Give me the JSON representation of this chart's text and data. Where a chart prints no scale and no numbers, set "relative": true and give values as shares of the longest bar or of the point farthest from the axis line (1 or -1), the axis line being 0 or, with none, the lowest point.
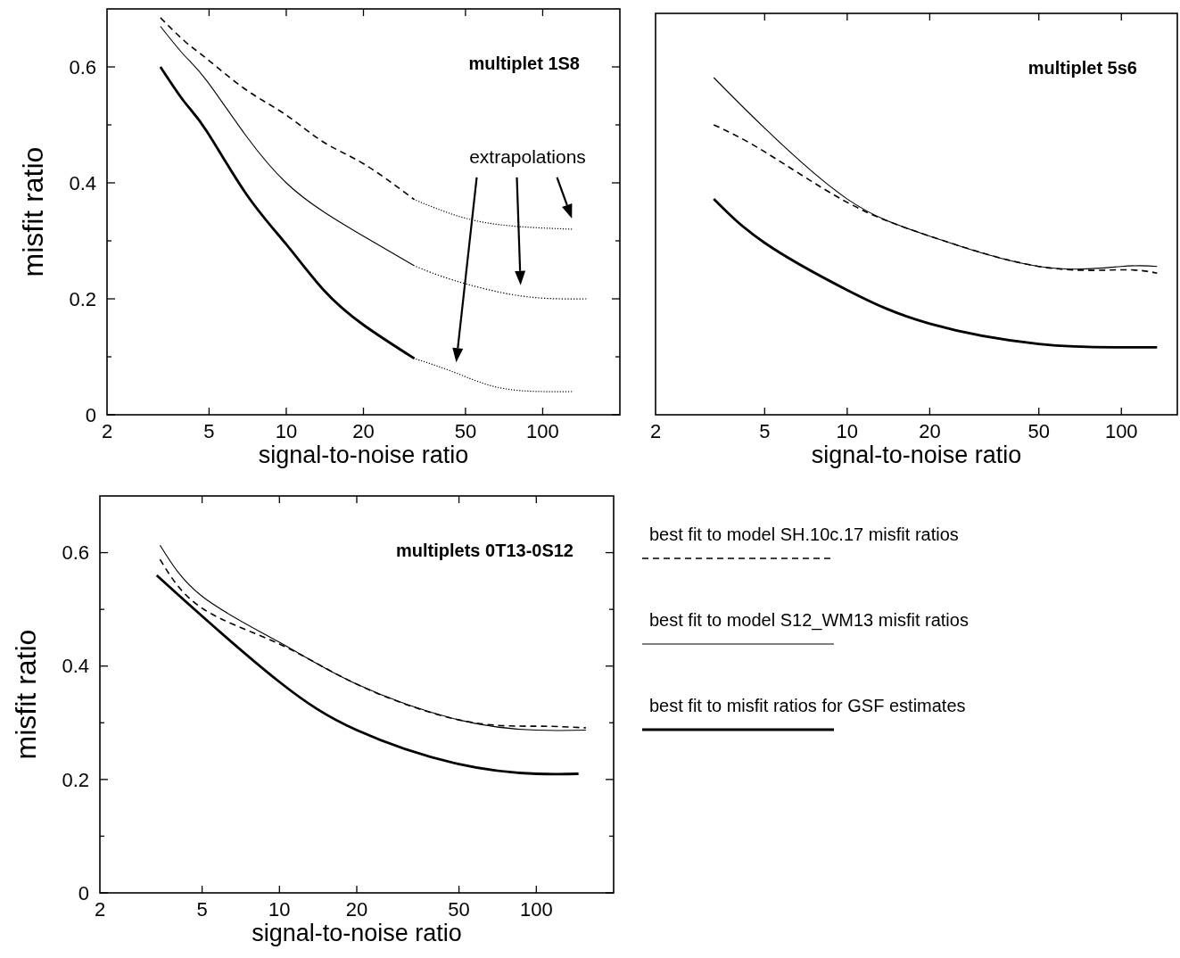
{
  "chart_data": [
    {
      "type": "line",
      "title": "multiplet 1S8",
      "xlabel": "signal-to-noise ratio",
      "ylabel": "misfit ratio",
      "log": "x",
      "xlim": [
        2,
        200
      ],
      "xticks": [
        2,
        5,
        10,
        20,
        50,
        100
      ],
      "ylim": [
        0,
        0.7
      ],
      "yticks": [
        0,
        {
          "value": 0.1,
          "label": null
        },
        0.2,
        {
          "value": 0.3,
          "label": null
        },
        0.4,
        {
          "value": 0.5,
          "label": null
        },
        0.6
      ],
      "annotations": [
        "extrapolations"
      ],
      "legend": false,
      "series": [
        {
          "color": "#000000",
          "line_style": "dashed",
          "x": [
            3.23,
            4,
            4.9,
            7,
            10,
            14,
            20,
            31.6
          ],
          "values": [
            0.685,
            0.645,
            0.614,
            0.56,
            0.517,
            0.47,
            0.433,
            0.371
          ]
        },
        {
          "color": "#000000",
          "line_style": "solid",
          "x": [
            3.23,
            4,
            4.9,
            7,
            10,
            14,
            20,
            31.6
          ],
          "values": [
            0.67,
            0.62,
            0.576,
            0.48,
            0.4,
            0.35,
            0.308,
            0.257
          ]
        },
        {
          "color": "#000000",
          "line_style": "solid",
          "x": [
            3.23,
            4,
            4.9,
            7,
            10,
            14,
            20,
            31.6
          ],
          "values": [
            0.6,
            0.54,
            0.489,
            0.38,
            0.294,
            0.215,
            0.155,
            0.097
          ]
        },
        {
          "color": "#000000",
          "line_style": "dotted",
          "x": [
            31.6,
            50,
            79,
            130
          ],
          "values": [
            0.371,
            0.339,
            0.325,
            0.32
          ]
        },
        {
          "color": "#000000",
          "line_style": "dotted",
          "x": [
            31.6,
            45,
            82,
            148
          ],
          "values": [
            0.257,
            0.232,
            0.205,
            0.2
          ]
        },
        {
          "color": "#000000",
          "line_style": "dotted",
          "x": [
            31.6,
            46,
            71,
            130
          ],
          "values": [
            0.097,
            0.072,
            0.045,
            0.04
          ]
        }
      ]
    },
    {
      "type": "line",
      "title": "multiplet 5s6",
      "xlabel": "signal-to-noise ratio",
      "log": "x",
      "xlim": [
        2,
        160
      ],
      "xticks": [
        2,
        5,
        10,
        20,
        50,
        100
      ],
      "relative": true,
      "legend": false,
      "series": [
        {
          "color": "#000000",
          "line_style": "dashed",
          "x": [
            3.26,
            5,
            10,
            20,
            50,
            100,
            135
          ],
          "values": [
            0.86,
            0.78,
            0.63,
            0.53,
            0.44,
            0.43,
            0.42
          ]
        },
        {
          "color": "#000000",
          "line_style": "solid",
          "x": [
            3.26,
            5,
            10,
            20,
            50,
            100,
            135
          ],
          "values": [
            1,
            0.85,
            0.64,
            0.53,
            0.44,
            0.44,
            0.44
          ]
        },
        {
          "color": "#000000",
          "line_style": "solid",
          "x": [
            3.26,
            5,
            10,
            20,
            50,
            100,
            135
          ],
          "values": [
            0.64,
            0.51,
            0.37,
            0.27,
            0.21,
            0.2,
            0.2
          ]
        }
      ]
    },
    {
      "type": "line",
      "title": "multiplets 0T13-0S12",
      "xlabel": "signal-to-noise ratio",
      "ylabel": "misfit ratio",
      "log": "x",
      "xlim": [
        2,
        200
      ],
      "xticks": [
        2,
        5,
        10,
        20,
        50,
        100
      ],
      "ylim": [
        0,
        0.7
      ],
      "yticks": [
        0,
        {
          "value": 0.1,
          "label": null
        },
        0.2,
        {
          "value": 0.3,
          "label": null
        },
        0.4,
        {
          "value": 0.5,
          "label": null
        },
        0.6
      ],
      "legend": "right",
      "series": [
        {
          "name": "best fit to model SH.10c.17 misfit ratios",
          "color": "#000000",
          "line_style": "dashed",
          "x": [
            3.43,
            5,
            10,
            20,
            50,
            100,
            156
          ],
          "values": [
            0.588,
            0.502,
            0.439,
            0.368,
            0.305,
            0.294,
            0.291
          ]
        },
        {
          "name": "best fit to model S12_WM13 misfit ratios",
          "color": "#000000",
          "line_style": "solid",
          "x": [
            3.43,
            5,
            10,
            20,
            50,
            100,
            156
          ],
          "values": [
            0.613,
            0.523,
            0.442,
            0.368,
            0.305,
            0.287,
            0.287
          ]
        },
        {
          "name": "best fit to misfit ratios for GSF estimates",
          "color": "#000000",
          "line_style": "solid",
          "x": [
            3.33,
            5,
            10,
            20,
            50,
            100,
            146
          ],
          "values": [
            0.56,
            0.488,
            0.372,
            0.287,
            0.227,
            0.21,
            0.21
          ]
        }
      ]
    }
  ]
}
